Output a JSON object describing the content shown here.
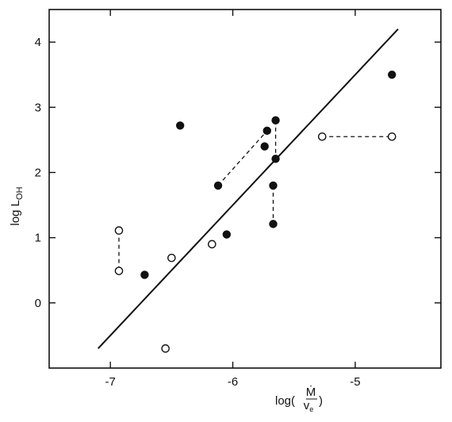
{
  "chart_data": {
    "type": "scatter",
    "title": "",
    "xlabel_parts": {
      "prefix": "log(",
      "numerator": "Ṁ",
      "denominator": "v",
      "denominator_sub": "e",
      "suffix": ")"
    },
    "ylabel_parts": {
      "main": "log L",
      "sub": "OH"
    },
    "xlim": [
      -7.5,
      -4.3
    ],
    "ylim": [
      -1.0,
      4.5
    ],
    "x_ticks": [
      -7,
      -6,
      -5
    ],
    "x_tick_labels": [
      "-7",
      "-6",
      "-5"
    ],
    "y_ticks": [
      0,
      1,
      2,
      3,
      4
    ],
    "y_tick_labels": [
      "0",
      "1",
      "2",
      "3",
      "4"
    ],
    "grid": false,
    "series": [
      {
        "marker": "filled-circle",
        "points": [
          {
            "x": -6.72,
            "y": 0.43
          },
          {
            "x": -6.43,
            "y": 2.72
          },
          {
            "x": -6.12,
            "y": 1.8
          },
          {
            "x": -6.05,
            "y": 1.05
          },
          {
            "x": -5.72,
            "y": 2.64
          },
          {
            "x": -5.74,
            "y": 2.4
          },
          {
            "x": -5.65,
            "y": 2.8
          },
          {
            "x": -5.65,
            "y": 2.21
          },
          {
            "x": -5.67,
            "y": 1.8
          },
          {
            "x": -5.67,
            "y": 1.21
          },
          {
            "x": -4.7,
            "y": 3.5
          }
        ]
      },
      {
        "marker": "open-circle",
        "points": [
          {
            "x": -6.93,
            "y": 1.11
          },
          {
            "x": -6.93,
            "y": 0.49
          },
          {
            "x": -6.5,
            "y": 0.69
          },
          {
            "x": -6.17,
            "y": 0.9
          },
          {
            "x": -6.55,
            "y": -0.7
          },
          {
            "x": -5.27,
            "y": 2.55
          },
          {
            "x": -4.7,
            "y": 2.55
          }
        ]
      }
    ],
    "dashed_links": [
      {
        "from": [
          -6.93,
          1.11
        ],
        "to": [
          -6.93,
          0.49
        ]
      },
      {
        "from": [
          -6.12,
          1.8
        ],
        "to": [
          -5.72,
          2.64
        ]
      },
      {
        "from": [
          -5.65,
          2.8
        ],
        "to": [
          -5.65,
          2.21
        ]
      },
      {
        "from": [
          -5.67,
          1.8
        ],
        "to": [
          -5.67,
          1.21
        ]
      },
      {
        "from": [
          -5.27,
          2.55
        ],
        "to": [
          -4.7,
          2.55
        ]
      }
    ],
    "fit_line": {
      "from": [
        -7.1,
        -0.7
      ],
      "to": [
        -4.65,
        4.2
      ]
    }
  }
}
